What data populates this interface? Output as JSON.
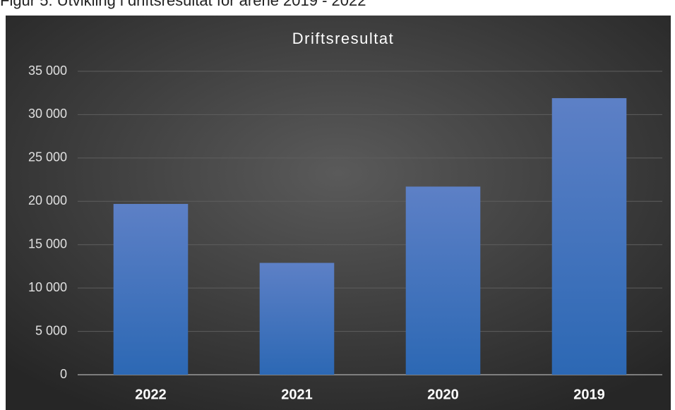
{
  "caption": "Figur 5: Utvikling i driftsresultat for årene 2019 - 2022",
  "chart_data": {
    "type": "bar",
    "title": "Driftsresultat",
    "categories": [
      "2022",
      "2021",
      "2020",
      "2019"
    ],
    "values": [
      19700,
      12900,
      21700,
      31900
    ],
    "color": "#4a78c2",
    "ylim": [
      0,
      35000
    ],
    "yticks": [
      0,
      {
        "value": 5000,
        "label": "5 000"
      },
      {
        "value": 10000,
        "label": "10 000"
      },
      {
        "value": 15000,
        "label": "15 000"
      },
      {
        "value": 20000,
        "label": "20 000"
      },
      {
        "value": 25000,
        "label": "25 000"
      },
      {
        "value": 30000,
        "label": "30 000"
      },
      {
        "value": 35000,
        "label": "35 000"
      }
    ],
    "grid": true
  }
}
